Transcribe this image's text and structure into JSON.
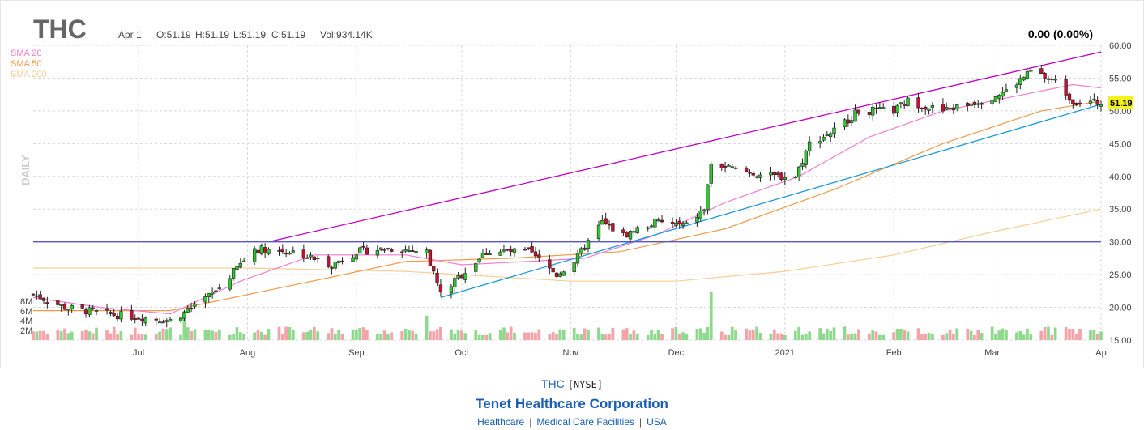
{
  "header": {
    "symbol": "THC",
    "date": "Apr 1",
    "open": "O:51.19",
    "high": "H:51.19",
    "low": "L:51.19",
    "close": "C:51.19",
    "volume": "Vol:934.14K",
    "change": "0.00 (0.00%)",
    "last_price": "51.19",
    "period_label": "DAILY"
  },
  "legend": [
    {
      "label": "SMA 20",
      "color": "#f07fd0"
    },
    {
      "label": "SMA 50",
      "color": "#f09a48"
    },
    {
      "label": "SMA 200",
      "color": "#f5cf93"
    }
  ],
  "colors": {
    "up": "#2fc62f",
    "down": "#c8102e",
    "upper_trend": "#c000c0",
    "lower_trend": "#1a9bd7",
    "horizontal": "#5555cc",
    "vol_up": "#8fd98f",
    "vol_down": "#f4a3a8"
  },
  "footer": {
    "ticker": "THC",
    "exchange": "[NYSE]",
    "company": "Tenet Healthcare Corporation",
    "sector": "Healthcare",
    "industry": "Medical Care Facilities",
    "country": "USA"
  },
  "chart_data": {
    "type": "candlestick",
    "x_range": [
      "2020-06-01",
      "2021-04-01"
    ],
    "ylim": [
      15,
      60
    ],
    "y_ticks": [
      "60.00",
      "55.00",
      "50.00",
      "45.00",
      "40.00",
      "35.00",
      "30.00",
      "25.00",
      "20.00",
      "15.00"
    ],
    "x_ticks": [
      "Jul",
      "Aug",
      "Sep",
      "Oct",
      "Nov",
      "Dec",
      "2021",
      "Feb",
      "Mar",
      "Ap"
    ],
    "volume_ticks": [
      "8M",
      "6M",
      "4M",
      "2M"
    ],
    "volume_max_millions": 10,
    "price_anchors": [
      [
        "2020-06-01",
        22.0
      ],
      [
        "2020-06-10",
        20.0
      ],
      [
        "2020-06-22",
        19.0
      ],
      [
        "2020-07-01",
        18.5
      ],
      [
        "2020-07-10",
        18.0
      ],
      [
        "2020-07-17",
        20.0
      ],
      [
        "2020-07-24",
        23.0
      ],
      [
        "2020-08-03",
        29.0
      ],
      [
        "2020-08-14",
        28.5
      ],
      [
        "2020-08-25",
        26.5
      ],
      [
        "2020-09-01",
        28.5
      ],
      [
        "2020-09-10",
        29.0
      ],
      [
        "2020-09-21",
        28.5
      ],
      [
        "2020-09-25",
        22.0
      ],
      [
        "2020-10-01",
        25.0
      ],
      [
        "2020-10-08",
        28.5
      ],
      [
        "2020-10-20",
        28.5
      ],
      [
        "2020-10-28",
        25.0
      ],
      [
        "2020-11-02",
        27.0
      ],
      [
        "2020-11-10",
        33.0
      ],
      [
        "2020-11-16",
        31.0
      ],
      [
        "2020-11-25",
        33.0
      ],
      [
        "2020-12-04",
        32.5
      ],
      [
        "2020-12-09",
        35.0
      ],
      [
        "2020-12-11",
        42.0
      ],
      [
        "2020-12-18",
        41.0
      ],
      [
        "2020-12-28",
        40.0
      ],
      [
        "2021-01-04",
        40.0
      ],
      [
        "2021-01-08",
        45.0
      ],
      [
        "2021-01-15",
        47.0
      ],
      [
        "2021-01-22",
        50.0
      ],
      [
        "2021-02-01",
        50.0
      ],
      [
        "2021-02-05",
        51.5
      ],
      [
        "2021-02-15",
        50.0
      ],
      [
        "2021-02-25",
        51.5
      ],
      [
        "2021-03-05",
        53.0
      ],
      [
        "2021-03-12",
        56.0
      ],
      [
        "2021-03-19",
        54.5
      ],
      [
        "2021-03-24",
        51.5
      ],
      [
        "2021-04-01",
        51.19
      ]
    ],
    "sma20_points": [
      [
        "2020-06-01",
        21.5
      ],
      [
        "2020-06-20",
        20.0
      ],
      [
        "2020-07-10",
        19.0
      ],
      [
        "2020-07-30",
        24.0
      ],
      [
        "2020-08-20",
        28.0
      ],
      [
        "2020-09-15",
        28.0
      ],
      [
        "2020-10-01",
        26.5
      ],
      [
        "2020-10-20",
        27.0
      ],
      [
        "2020-11-05",
        27.5
      ],
      [
        "2020-11-25",
        31.0
      ],
      [
        "2020-12-15",
        36.0
      ],
      [
        "2021-01-05",
        40.0
      ],
      [
        "2021-01-25",
        46.0
      ],
      [
        "2021-02-15",
        50.0
      ],
      [
        "2021-03-10",
        52.5
      ],
      [
        "2021-03-24",
        54.0
      ],
      [
        "2021-04-01",
        53.5
      ]
    ],
    "sma50_points": [
      [
        "2020-06-01",
        19.5
      ],
      [
        "2020-07-10",
        19.5
      ],
      [
        "2020-08-15",
        23.5
      ],
      [
        "2020-09-15",
        27.0
      ],
      [
        "2020-10-15",
        27.5
      ],
      [
        "2020-11-15",
        28.5
      ],
      [
        "2020-12-15",
        32.0
      ],
      [
        "2021-01-15",
        38.0
      ],
      [
        "2021-02-15",
        45.0
      ],
      [
        "2021-03-15",
        50.0
      ],
      [
        "2021-04-01",
        51.5
      ]
    ],
    "sma200_points": [
      [
        "2020-06-01",
        26.0
      ],
      [
        "2020-08-01",
        26.0
      ],
      [
        "2020-09-15",
        25.5
      ],
      [
        "2020-11-01",
        24.0
      ],
      [
        "2020-12-01",
        24.0
      ],
      [
        "2021-01-01",
        25.5
      ],
      [
        "2021-02-01",
        28.0
      ],
      [
        "2021-03-01",
        31.5
      ],
      [
        "2021-04-01",
        35.0
      ]
    ],
    "trendlines": [
      {
        "name": "upper",
        "from": [
          "2020-08-07",
          30.0
        ],
        "to": [
          "2021-04-01",
          59.0
        ]
      },
      {
        "name": "lower",
        "from": [
          "2020-09-25",
          21.5
        ],
        "to": [
          "2021-04-01",
          51.0
        ]
      },
      {
        "name": "horizontal",
        "from": [
          "2020-06-01",
          30.0
        ],
        "to": [
          "2021-04-01",
          30.0
        ]
      }
    ],
    "volume_highlights": [
      [
        "2020-12-11",
        10.0
      ],
      [
        "2020-09-21",
        5.0
      ],
      [
        "2020-07-14",
        6.0
      ]
    ]
  }
}
